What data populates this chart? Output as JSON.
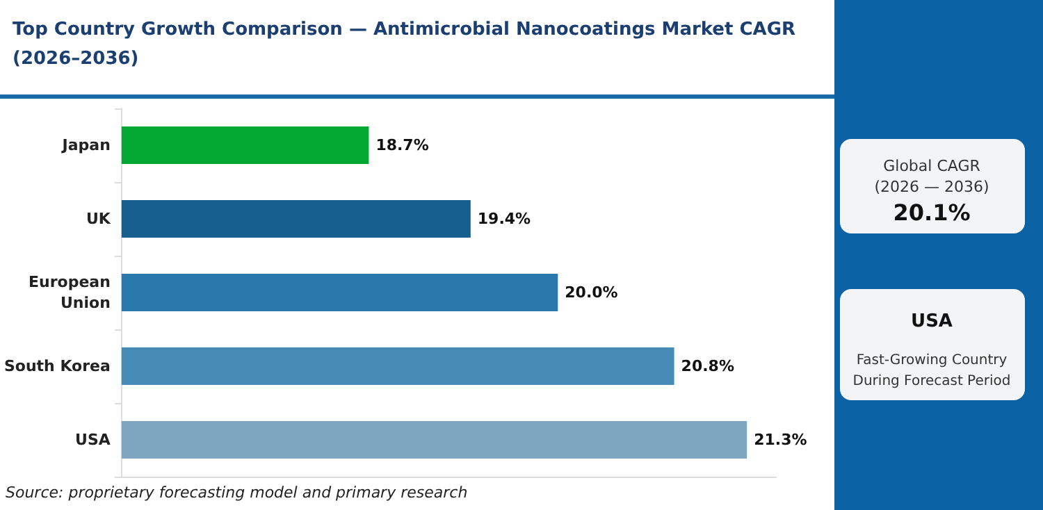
{
  "chart_data": {
    "type": "bar",
    "orientation": "horizontal",
    "title": "Top Country Growth Comparison — Antimicrobial Nanocoatings Market CAGR\n(2026–2036)",
    "categories": [
      "Japan",
      "UK",
      "European\nUnion",
      "South Korea",
      "USA"
    ],
    "values": [
      18.7,
      19.4,
      20.0,
      20.8,
      21.3
    ],
    "value_labels": [
      "18.7%",
      "19.4%",
      "20.0%",
      "20.8%",
      "21.3%"
    ],
    "colors": [
      "#03a833",
      "#175f8f",
      "#2878ab",
      "#468cb7",
      "#7ea6c1"
    ],
    "xlim": [
      17,
      21.5
    ],
    "tick_labels": "y",
    "annotations": [
      "Global CAGR\n(2026 — 2036)",
      "20.1%",
      "USA",
      "Fast-Growing Country\nDuring Forecast Period",
      "Source: proprietary forecasting model and primary research"
    ]
  }
}
